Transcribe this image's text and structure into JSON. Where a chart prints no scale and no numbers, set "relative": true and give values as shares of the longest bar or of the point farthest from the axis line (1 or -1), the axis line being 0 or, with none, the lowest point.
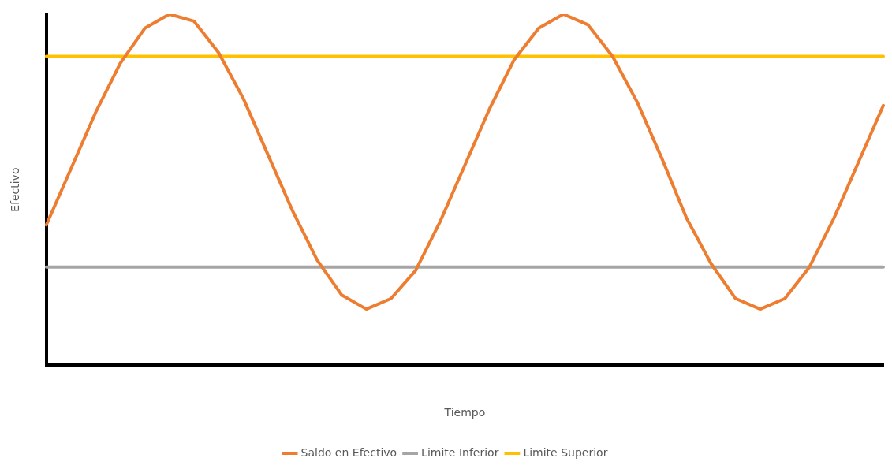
{
  "chart_data": {
    "type": "line",
    "relative": true,
    "xlabel": "Tiempo",
    "ylabel": "Efectivo",
    "legend": "bottom",
    "grid": false,
    "marker": "none",
    "line_style": "solid",
    "categories": [
      null,
      null,
      null,
      null,
      null,
      null,
      null,
      null,
      null,
      null,
      null,
      null,
      null,
      null,
      null,
      null,
      null,
      null,
      null,
      null,
      null,
      null,
      null,
      null,
      null,
      null,
      null,
      null,
      null,
      null,
      null,
      null,
      null,
      null,
      null
    ],
    "series": [
      {
        "name": "Saldo en Efectivo",
        "color": "#ed7d31",
        "values": [
          0.4,
          0.56,
          0.72,
          0.86,
          0.96,
          1.0,
          0.98,
          0.89,
          0.76,
          0.6,
          0.44,
          0.3,
          0.2,
          0.16,
          0.19,
          0.27,
          0.41,
          0.57,
          0.73,
          0.87,
          0.96,
          1.0,
          0.97,
          0.88,
          0.75,
          0.59,
          0.42,
          0.29,
          0.19,
          0.16,
          0.19,
          0.28,
          0.42,
          0.58,
          0.74
        ]
      },
      {
        "name": "Limite Inferior",
        "color": "#a5a5a5",
        "values": [
          0.28,
          0.28,
          0.28,
          0.28,
          0.28,
          0.28,
          0.28,
          0.28,
          0.28,
          0.28,
          0.28,
          0.28,
          0.28,
          0.28,
          0.28,
          0.28,
          0.28,
          0.28,
          0.28,
          0.28,
          0.28,
          0.28,
          0.28,
          0.28,
          0.28,
          0.28,
          0.28,
          0.28,
          0.28,
          0.28,
          0.28,
          0.28,
          0.28,
          0.28,
          0.28
        ]
      },
      {
        "name": "Limite Superior",
        "color": "#ffc000",
        "values": [
          0.88,
          0.88,
          0.88,
          0.88,
          0.88,
          0.88,
          0.88,
          0.88,
          0.88,
          0.88,
          0.88,
          0.88,
          0.88,
          0.88,
          0.88,
          0.88,
          0.88,
          0.88,
          0.88,
          0.88,
          0.88,
          0.88,
          0.88,
          0.88,
          0.88,
          0.88,
          0.88,
          0.88,
          0.88,
          0.88,
          0.88,
          0.88,
          0.88,
          0.88,
          0.88
        ]
      }
    ]
  }
}
